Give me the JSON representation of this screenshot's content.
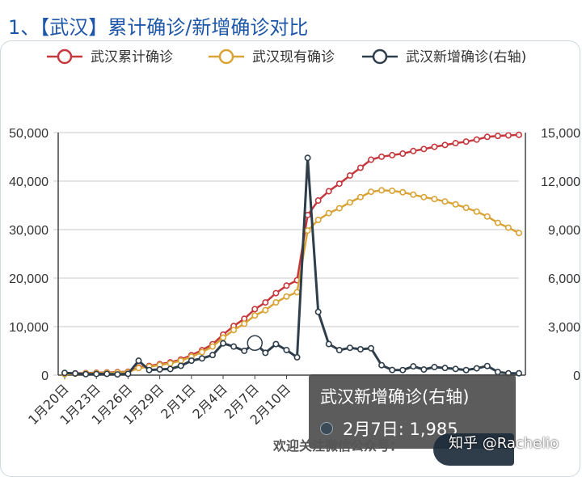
{
  "title": "1、【武汉】累计确诊/新增确诊对比",
  "footer_text": "欢迎关注微信公众号：",
  "watermark": "知乎 @Rachelio",
  "tooltip": {
    "series": "武汉新增确诊(右轴)",
    "label": "2月7日: 1,985"
  },
  "colors": {
    "cumulative": "#c4383e",
    "current": "#d9a336",
    "new": "#2f3e4b",
    "title": "#1e57a8",
    "grid": "#c8c8c8"
  },
  "chart_data": {
    "type": "line",
    "legend_position": "top",
    "grid": true,
    "x_tick_labels": [
      "1月20日",
      "1月23日",
      "1月26日",
      "1月29日",
      "2月1日",
      "2月4日",
      "2月7日",
      "2月10日"
    ],
    "x": [
      "1月20日",
      "1月21日",
      "1月22日",
      "1月23日",
      "1月24日",
      "1月25日",
      "1月26日",
      "1月27日",
      "1月28日",
      "1月29日",
      "1月30日",
      "1月31日",
      "2月1日",
      "2月2日",
      "2月3日",
      "2月4日",
      "2月5日",
      "2月6日",
      "2月7日",
      "2月8日",
      "2月9日",
      "2月10日",
      "2月11日",
      "2月12日",
      "2月13日",
      "2月14日",
      "2月15日",
      "2月16日",
      "2月17日",
      "2月18日",
      "2月19日",
      "2月20日",
      "2月21日",
      "2月22日",
      "2月23日",
      "2月24日",
      "2月25日",
      "2月26日",
      "2月27日",
      "2月28日",
      "2月29日",
      "3月1日",
      "3月2日",
      "3月3日"
    ],
    "y_left": {
      "min": 0,
      "max": 50000,
      "ticks": [
        "0",
        "10,000",
        "20,000",
        "30,000",
        "40,000",
        "50,000"
      ]
    },
    "y_right": {
      "min": 0,
      "max": 15000,
      "ticks": [
        "0",
        "3,000",
        "6,000",
        "9,000",
        "12,000",
        "15,000"
      ]
    },
    "series": [
      {
        "name": "武汉累计确诊",
        "axis": "left",
        "values": [
          258,
          363,
          425,
          495,
          572,
          618,
          698,
          1590,
          1905,
          2261,
          2639,
          3215,
          4109,
          5142,
          6384,
          8351,
          10117,
          11618,
          13603,
          14982,
          16902,
          18454,
          19558,
          32994,
          35991,
          37914,
          39462,
          41152,
          42752,
          44412,
          45027,
          45346,
          45660,
          46201,
          46607,
          47071,
          47441,
          47824,
          48137,
          48557,
          49122,
          49315,
          49426,
          49540
        ]
      },
      {
        "name": "武汉现有确诊",
        "axis": "left",
        "values": [
          200,
          300,
          360,
          420,
          480,
          530,
          600,
          1450,
          1740,
          2080,
          2440,
          2980,
          3800,
          4750,
          5900,
          7720,
          9300,
          10600,
          12300,
          13400,
          15000,
          16200,
          17100,
          29800,
          32000,
          33400,
          34400,
          35600,
          36700,
          37800,
          38100,
          38000,
          37700,
          37200,
          36700,
          36300,
          35800,
          35200,
          34500,
          33700,
          32700,
          31400,
          30400,
          29300
        ]
      },
      {
        "name": "武汉新增确诊(右轴)",
        "axis": "right",
        "values": [
          136,
          105,
          62,
          70,
          77,
          46,
          80,
          892,
          315,
          356,
          378,
          576,
          894,
          1033,
          1242,
          1967,
          1766,
          1501,
          1985,
          1379,
          1920,
          1552,
          1104,
          13436,
          3910,
          1923,
          1548,
          1690,
          1600,
          1660,
          615,
          319,
          314,
          541,
          348,
          499,
          441,
          383,
          313,
          420,
          565,
          193,
          111,
          114
        ]
      }
    ]
  }
}
